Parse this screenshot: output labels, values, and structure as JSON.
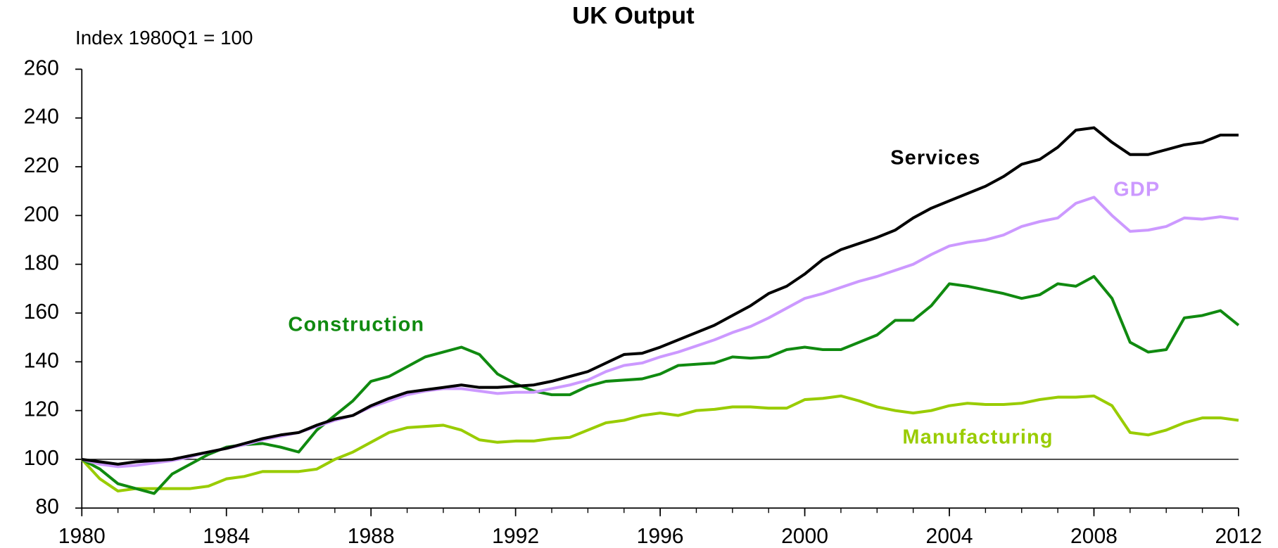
{
  "chart_data": {
    "type": "line",
    "title": "UK Output",
    "subtitle": "Index 1980Q1 = 100",
    "x": [
      1980,
      1980.5,
      1981,
      1981.5,
      1982,
      1982.5,
      1983,
      1983.5,
      1984,
      1984.5,
      1985,
      1985.5,
      1986,
      1986.5,
      1987,
      1987.5,
      1988,
      1988.5,
      1989,
      1989.5,
      1990,
      1990.5,
      1991,
      1991.5,
      1992,
      1992.5,
      1993,
      1993.5,
      1994,
      1994.5,
      1995,
      1995.5,
      1996,
      1996.5,
      1997,
      1997.5,
      1998,
      1998.5,
      1999,
      1999.5,
      2000,
      2000.5,
      2001,
      2001.5,
      2002,
      2002.5,
      2003,
      2003.5,
      2004,
      2004.5,
      2005,
      2005.5,
      2006,
      2006.5,
      2007,
      2007.5,
      2008,
      2008.5,
      2009,
      2009.5,
      2010,
      2010.5,
      2011,
      2011.5,
      2012
    ],
    "series": [
      {
        "name": "Manufacturing",
        "color": "#99cc00",
        "values": [
          100,
          92,
          87,
          88,
          88,
          88,
          88,
          89,
          92,
          93,
          95,
          95,
          95,
          96,
          100,
          103,
          107,
          111,
          113,
          113.5,
          114,
          112,
          108,
          107,
          107.5,
          107.5,
          108.5,
          109,
          112,
          115,
          116,
          118,
          119,
          118,
          120,
          120.5,
          121.5,
          121.5,
          121,
          121,
          124.5,
          125,
          126,
          124,
          121.5,
          120,
          119,
          120,
          122,
          123,
          122.5,
          122.5,
          123,
          124.5,
          125.5,
          125.5,
          126,
          122,
          111,
          110,
          112,
          115,
          117,
          117,
          116
        ]
      },
      {
        "name": "Construction",
        "color": "#108a10",
        "values": [
          100,
          96,
          90,
          88,
          86,
          94,
          98,
          102,
          105,
          106,
          106.5,
          105,
          103,
          112,
          118,
          124,
          132,
          134,
          138,
          142,
          144,
          146,
          143,
          135,
          131,
          128,
          126.5,
          126.5,
          130,
          132,
          132.5,
          133,
          135,
          138.5,
          139,
          139.5,
          142,
          141.5,
          142,
          145,
          146,
          145,
          145,
          148,
          151,
          157,
          157,
          163,
          172,
          171,
          169.5,
          168,
          166,
          167.5,
          172,
          171,
          175,
          166,
          148,
          144,
          145,
          158,
          159,
          161,
          155
        ]
      },
      {
        "name": "GDP",
        "color": "#cc99ff",
        "values": [
          100,
          98,
          97,
          97.5,
          98.5,
          99.5,
          101,
          103,
          104.5,
          106,
          108,
          109.5,
          111,
          113.5,
          116,
          118,
          121.5,
          124,
          126.5,
          128,
          129,
          129,
          128,
          127,
          127.5,
          127.5,
          129,
          130.5,
          132.5,
          136,
          138.5,
          139.5,
          142,
          144,
          146.5,
          149,
          152,
          154.5,
          158,
          162,
          166,
          168,
          170.5,
          173,
          175,
          177.5,
          180,
          184,
          187.5,
          189,
          190,
          192,
          195.5,
          197.5,
          199,
          205,
          207.5,
          200,
          193.5,
          194,
          195.5,
          199,
          198.5,
          199.5,
          198.5
        ]
      },
      {
        "name": "Services",
        "color": "#000000",
        "values": [
          100,
          99,
          98,
          99,
          99.5,
          100,
          101.5,
          103,
          104.5,
          106.5,
          108.5,
          110,
          111,
          114,
          116.5,
          118,
          122,
          125,
          127.5,
          128.5,
          129.5,
          130.5,
          129.5,
          129.5,
          130,
          130.5,
          132,
          134,
          136,
          139.5,
          143,
          143.5,
          146,
          149,
          152,
          155,
          159,
          163,
          168,
          171,
          176,
          182,
          186,
          188.5,
          191,
          194,
          199,
          203,
          206,
          209,
          212,
          216,
          221,
          223,
          228,
          235,
          236,
          230,
          225,
          225,
          227,
          229,
          230,
          233,
          233
        ]
      }
    ],
    "xlim": [
      1980,
      2012
    ],
    "xticks": [
      1980,
      1984,
      1988,
      1992,
      1996,
      2000,
      2004,
      2008,
      2012
    ],
    "ylim": [
      80,
      260
    ],
    "yticks": [
      80,
      100,
      120,
      140,
      160,
      180,
      200,
      220,
      240,
      260
    ],
    "baseline": 100
  }
}
